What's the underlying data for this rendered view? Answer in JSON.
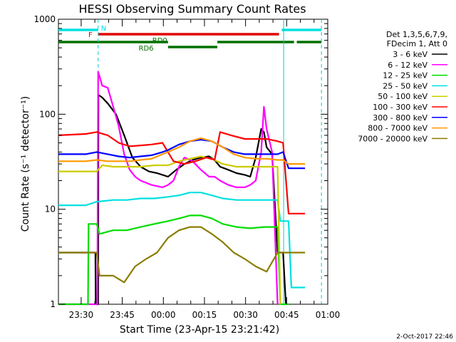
{
  "chart_data": {
    "type": "line",
    "title": "HESSI Observing Summary Count Rates",
    "xlabel": "Start Time (23-Apr-15 23:21:42)",
    "ylabel": "Count Rate (s⁻¹ detector⁻¹)",
    "yscale": "log",
    "ylim": [
      1,
      1000
    ],
    "xlim_minutes_after_start": [
      0,
      98.3
    ],
    "x_ticks": [
      {
        "label": "23:30",
        "minutes": 8.3
      },
      {
        "label": "23:45",
        "minutes": 23.3
      },
      {
        "label": "00:00",
        "minutes": 38.3
      },
      {
        "label": "00:15",
        "minutes": 53.3
      },
      {
        "label": "00:30",
        "minutes": 68.3
      },
      {
        "label": "00:45",
        "minutes": 83.3
      },
      {
        "label": "01:00",
        "minutes": 98.3
      }
    ],
    "y_ticks": [
      {
        "label": "1",
        "value": 1
      },
      {
        "label": "10",
        "value": 10
      },
      {
        "label": "100",
        "value": 100
      },
      {
        "label": "1000",
        "value": 1000
      }
    ],
    "legend_position": "right",
    "legend_header": [
      "Det 1,3,5,6,7,9,",
      "FDecim 1, Att 0"
    ],
    "grid": false,
    "flags": [
      {
        "label": "N",
        "color": "#00e0e0",
        "segments": [
          [
            0,
            14.5
          ],
          [
            81.5,
            96
          ]
        ]
      },
      {
        "label": "F",
        "color": "#e00000",
        "segments": [
          [
            14.5,
            80.5
          ]
        ]
      },
      {
        "label": "RD0",
        "color": "#007000",
        "segments": [
          [
            0,
            40
          ],
          [
            58,
            86
          ],
          [
            87,
            96
          ]
        ]
      },
      {
        "label": "RD6",
        "color": "#007000",
        "segments": [
          [
            40,
            58
          ]
        ]
      }
    ],
    "night_lines": [
      14.5,
      82.2,
      96
    ],
    "series": [
      {
        "name": "3 - 6 keV",
        "color": "#000000",
        "points": [
          [
            0,
            3.5
          ],
          [
            13.5,
            3.5
          ],
          [
            13.6,
            0
          ],
          [
            14.5,
            0
          ],
          [
            14.6,
            160
          ],
          [
            16,
            150
          ],
          [
            18,
            130
          ],
          [
            21,
            100
          ],
          [
            24,
            60
          ],
          [
            27,
            35
          ],
          [
            30,
            28
          ],
          [
            33,
            25
          ],
          [
            36,
            24
          ],
          [
            38,
            23
          ],
          [
            40,
            22
          ],
          [
            43,
            26
          ],
          [
            46,
            30
          ],
          [
            49,
            33
          ],
          [
            52,
            35
          ],
          [
            55,
            36
          ],
          [
            57,
            33
          ],
          [
            59,
            28
          ],
          [
            62,
            26
          ],
          [
            65,
            24
          ],
          [
            68,
            23
          ],
          [
            70,
            22
          ],
          [
            72,
            35
          ],
          [
            74,
            70
          ],
          [
            75,
            65
          ],
          [
            76,
            45
          ],
          [
            78,
            38
          ],
          [
            80,
            3.5
          ],
          [
            82,
            3.5
          ],
          [
            83,
            0
          ]
        ]
      },
      {
        "name": "6 - 12 keV",
        "color": "#ff00ff",
        "points": [
          [
            0,
            0
          ],
          [
            13.5,
            0
          ],
          [
            14.2,
            0
          ],
          [
            14.5,
            280
          ],
          [
            16,
            200
          ],
          [
            18,
            190
          ],
          [
            20,
            120
          ],
          [
            22,
            75
          ],
          [
            24,
            38
          ],
          [
            26,
            26
          ],
          [
            28,
            22
          ],
          [
            30,
            20
          ],
          [
            34,
            18
          ],
          [
            38,
            17
          ],
          [
            40,
            18
          ],
          [
            42,
            20
          ],
          [
            44,
            28
          ],
          [
            46,
            35
          ],
          [
            49,
            32
          ],
          [
            52,
            26
          ],
          [
            55,
            22
          ],
          [
            57,
            22
          ],
          [
            59,
            20
          ],
          [
            62,
            18
          ],
          [
            65,
            17
          ],
          [
            68,
            17
          ],
          [
            70,
            18
          ],
          [
            72,
            20
          ],
          [
            74,
            40
          ],
          [
            75,
            120
          ],
          [
            76,
            70
          ],
          [
            78,
            40
          ],
          [
            80,
            0
          ]
        ]
      },
      {
        "name": "12 - 25 keV",
        "color": "#00dd00",
        "points": [
          [
            0,
            0
          ],
          [
            10.8,
            0
          ],
          [
            11,
            7
          ],
          [
            14,
            7
          ],
          [
            15,
            5.5
          ],
          [
            20,
            6
          ],
          [
            25,
            6
          ],
          [
            30,
            6.5
          ],
          [
            35,
            7
          ],
          [
            40,
            7.5
          ],
          [
            44,
            8
          ],
          [
            48,
            8.6
          ],
          [
            52,
            8.6
          ],
          [
            56,
            8
          ],
          [
            60,
            7
          ],
          [
            65,
            6.5
          ],
          [
            70,
            6.3
          ],
          [
            75,
            6.5
          ],
          [
            80,
            6.5
          ],
          [
            81,
            0
          ],
          [
            84,
            0
          ]
        ]
      },
      {
        "name": "25 - 50 keV",
        "color": "#00e0e0",
        "points": [
          [
            0,
            11
          ],
          [
            10,
            11
          ],
          [
            14,
            12
          ],
          [
            20,
            12.5
          ],
          [
            25,
            12.5
          ],
          [
            30,
            13
          ],
          [
            35,
            13
          ],
          [
            40,
            13.5
          ],
          [
            44,
            14
          ],
          [
            48,
            15
          ],
          [
            52,
            15
          ],
          [
            56,
            14
          ],
          [
            60,
            13
          ],
          [
            65,
            12.5
          ],
          [
            70,
            12.5
          ],
          [
            75,
            12.5
          ],
          [
            80,
            12.5
          ],
          [
            81,
            7.5
          ],
          [
            84,
            7.5
          ],
          [
            85,
            1.5
          ],
          [
            90,
            1.5
          ]
        ]
      },
      {
        "name": "50 - 100 keV",
        "color": "#cccc00",
        "points": [
          [
            0,
            25
          ],
          [
            14,
            25
          ],
          [
            16,
            29
          ],
          [
            20,
            28
          ],
          [
            25,
            28
          ],
          [
            30,
            28
          ],
          [
            35,
            29
          ],
          [
            40,
            29
          ],
          [
            44,
            32
          ],
          [
            48,
            34
          ],
          [
            52,
            36
          ],
          [
            56,
            34
          ],
          [
            60,
            30
          ],
          [
            65,
            28
          ],
          [
            70,
            28
          ],
          [
            75,
            28
          ],
          [
            80,
            28
          ],
          [
            81,
            0
          ]
        ]
      },
      {
        "name": "100 - 300 keV",
        "color": "#ff0000",
        "points": [
          [
            0,
            60
          ],
          [
            10,
            62
          ],
          [
            14,
            65
          ],
          [
            18,
            60
          ],
          [
            22,
            50
          ],
          [
            26,
            46
          ],
          [
            30,
            47
          ],
          [
            34,
            48
          ],
          [
            38,
            50
          ],
          [
            40,
            40
          ],
          [
            42,
            32
          ],
          [
            46,
            30
          ],
          [
            50,
            32
          ],
          [
            54,
            35
          ],
          [
            57,
            33
          ],
          [
            59,
            65
          ],
          [
            63,
            60
          ],
          [
            68,
            55
          ],
          [
            72,
            55
          ],
          [
            76,
            55
          ],
          [
            80,
            52
          ],
          [
            82,
            50
          ],
          [
            84,
            9
          ],
          [
            90,
            9
          ]
        ]
      },
      {
        "name": "300 - 800 keV",
        "color": "#0000ff",
        "points": [
          [
            0,
            38
          ],
          [
            10,
            38
          ],
          [
            14,
            40
          ],
          [
            18,
            38
          ],
          [
            22,
            36
          ],
          [
            26,
            35
          ],
          [
            30,
            36
          ],
          [
            34,
            37
          ],
          [
            38,
            40
          ],
          [
            40,
            42
          ],
          [
            44,
            48
          ],
          [
            48,
            52
          ],
          [
            52,
            54
          ],
          [
            56,
            52
          ],
          [
            60,
            45
          ],
          [
            64,
            40
          ],
          [
            68,
            38
          ],
          [
            72,
            38
          ],
          [
            76,
            38
          ],
          [
            80,
            38
          ],
          [
            82,
            40
          ],
          [
            84,
            27
          ],
          [
            90,
            27
          ]
        ]
      },
      {
        "name": "800 - 7000 keV",
        "color": "#ff9900",
        "points": [
          [
            0,
            32
          ],
          [
            10,
            32
          ],
          [
            14,
            33
          ],
          [
            18,
            32
          ],
          [
            22,
            32
          ],
          [
            26,
            32
          ],
          [
            30,
            33
          ],
          [
            34,
            34
          ],
          [
            38,
            38
          ],
          [
            40,
            40
          ],
          [
            44,
            45
          ],
          [
            48,
            52
          ],
          [
            52,
            56
          ],
          [
            56,
            52
          ],
          [
            60,
            45
          ],
          [
            64,
            38
          ],
          [
            68,
            35
          ],
          [
            72,
            34
          ],
          [
            76,
            34
          ],
          [
            80,
            33
          ],
          [
            82,
            33
          ],
          [
            84,
            30
          ],
          [
            90,
            30
          ]
        ]
      },
      {
        "name": "7000 - 20000 keV",
        "color": "#8b7d00",
        "points": [
          [
            0,
            3.5
          ],
          [
            14,
            3.5
          ],
          [
            15,
            2
          ],
          [
            20,
            2
          ],
          [
            24,
            1.7
          ],
          [
            28,
            2.5
          ],
          [
            32,
            3
          ],
          [
            36,
            3.5
          ],
          [
            40,
            5
          ],
          [
            44,
            6
          ],
          [
            48,
            6.5
          ],
          [
            52,
            6.5
          ],
          [
            56,
            5.5
          ],
          [
            60,
            4.5
          ],
          [
            64,
            3.5
          ],
          [
            68,
            3
          ],
          [
            72,
            2.5
          ],
          [
            76,
            2.2
          ],
          [
            80,
            3.5
          ],
          [
            82,
            3.5
          ],
          [
            84,
            3.5
          ],
          [
            90,
            3.5
          ]
        ]
      }
    ]
  },
  "footer_timestamp": "2-Oct-2017 22:46"
}
